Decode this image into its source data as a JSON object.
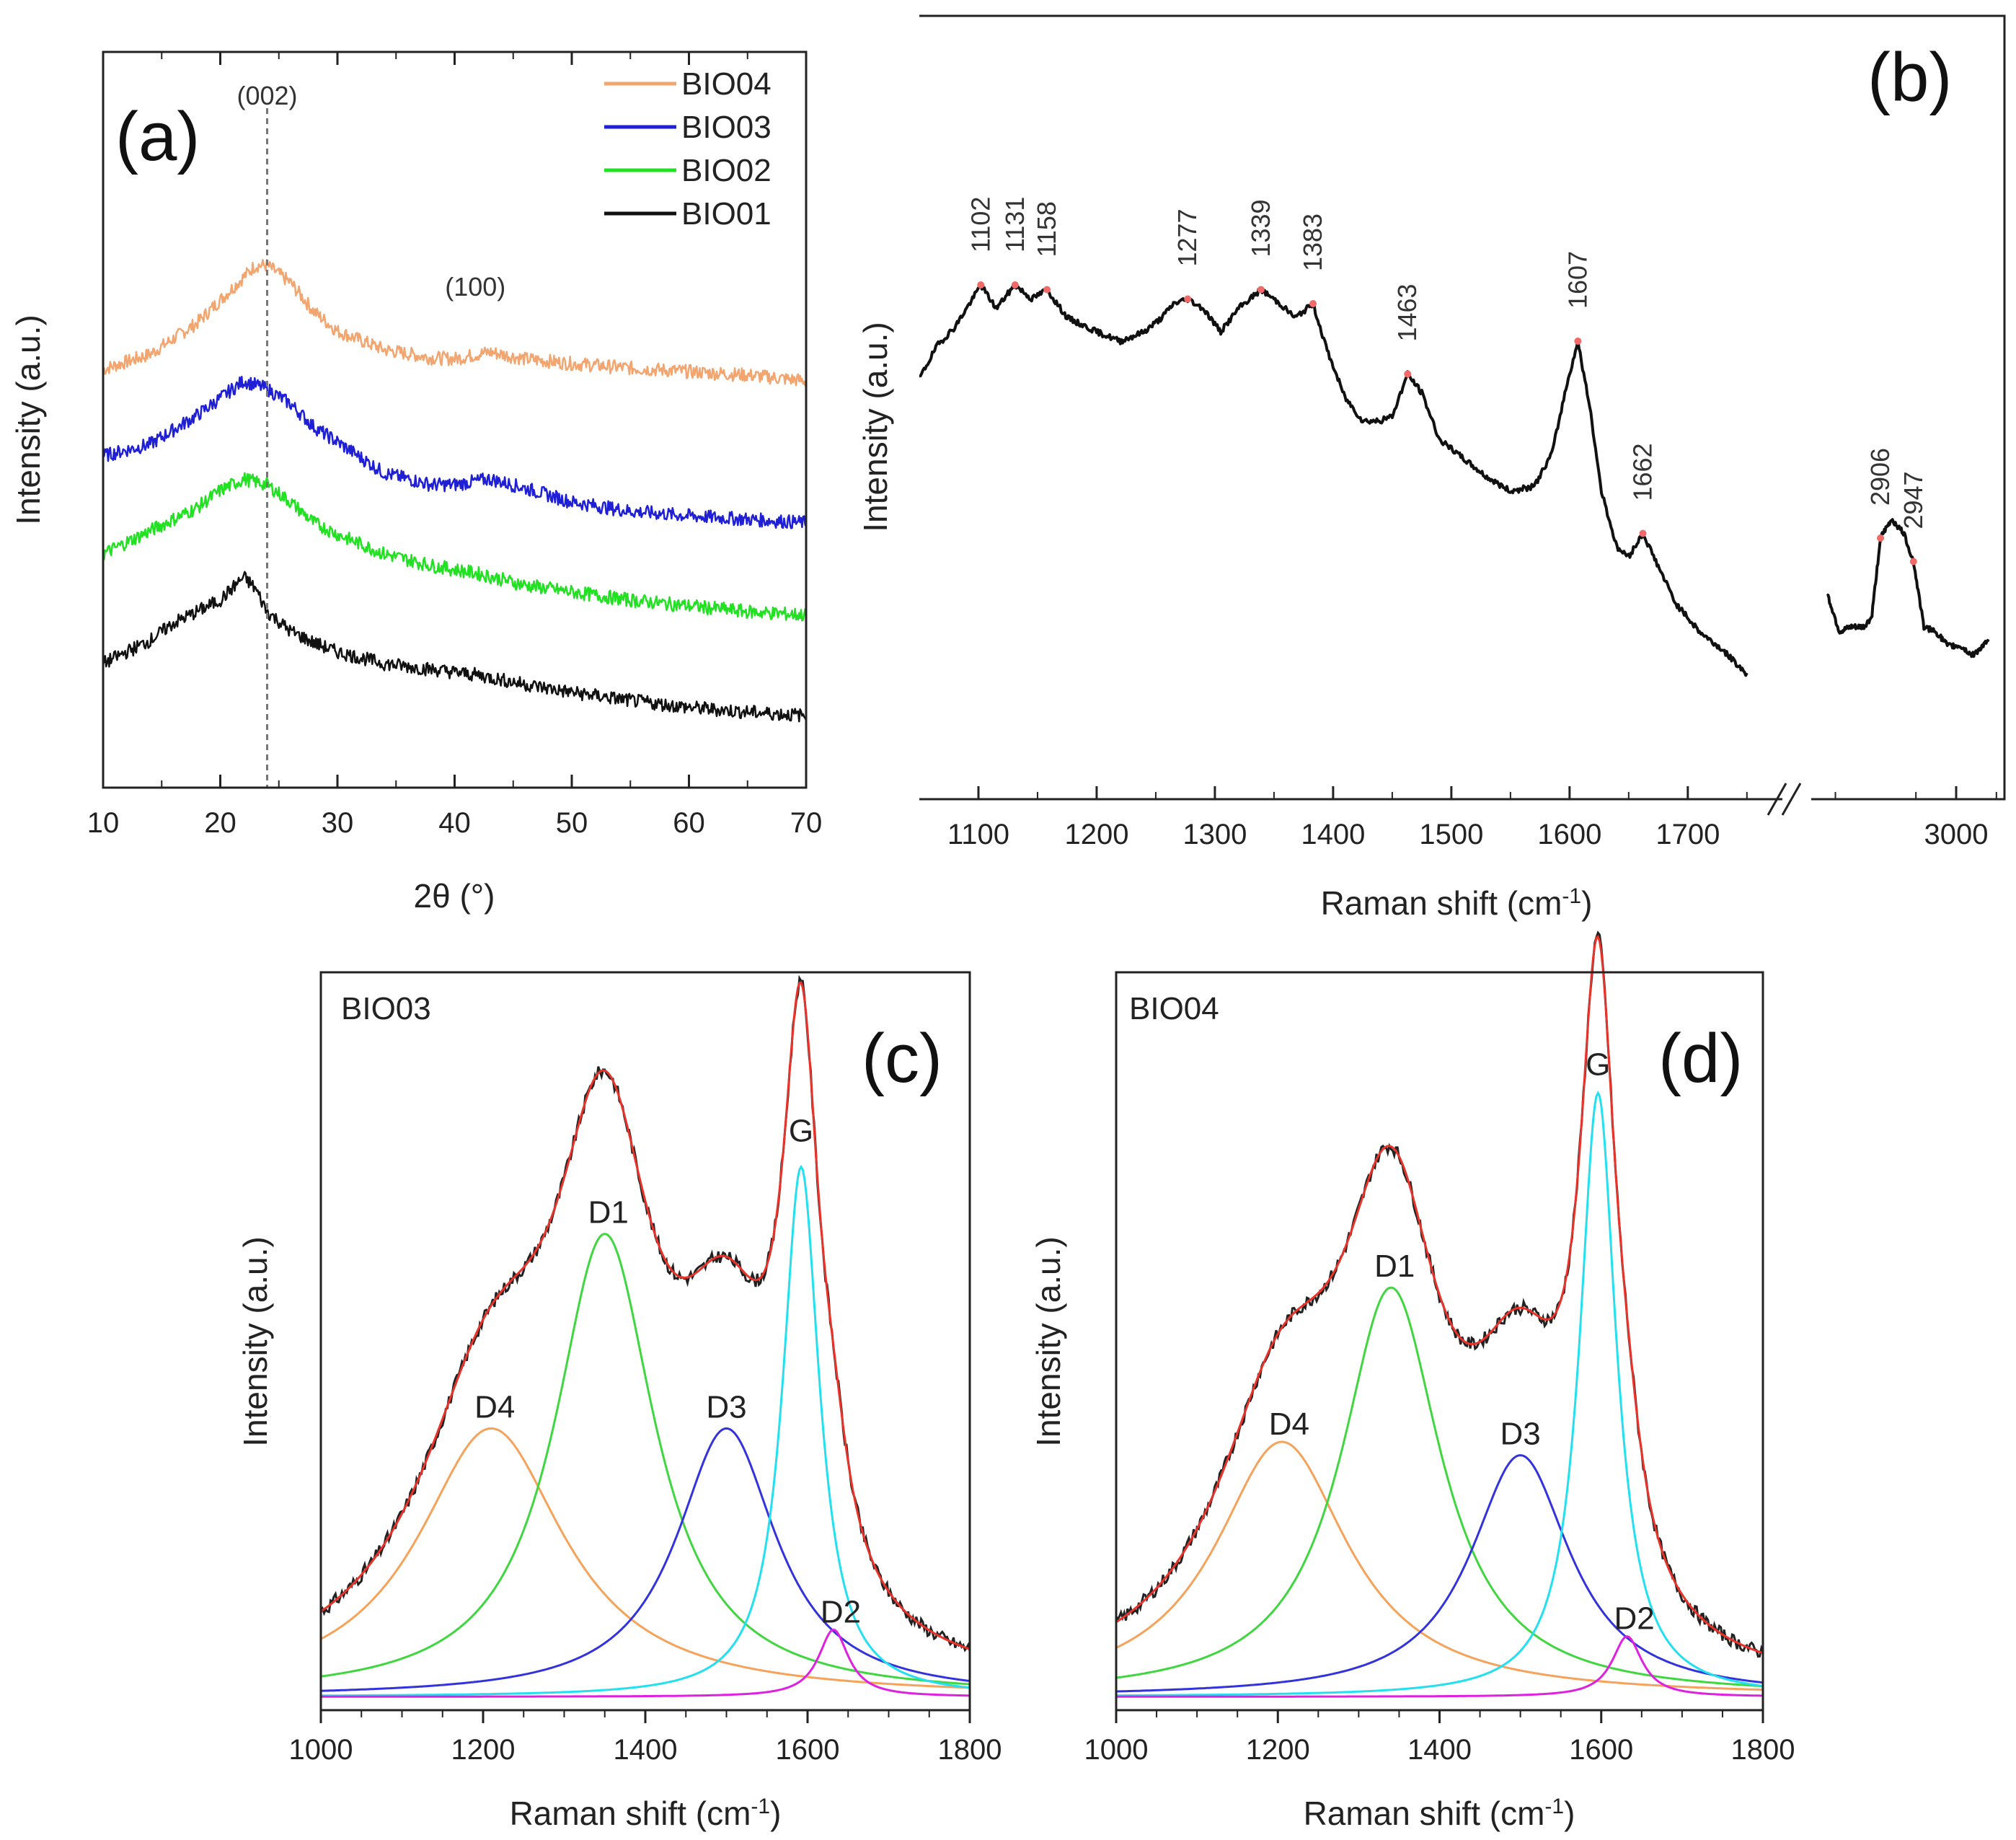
{
  "chart_data": [
    {
      "panel": "(a)",
      "type": "line",
      "xlabel": "2θ (°)",
      "ylabel": "Intensity (a.u.)",
      "xlim": [
        10,
        70
      ],
      "xticks": [
        10,
        20,
        30,
        40,
        50,
        60,
        70
      ],
      "y_ticks_shown": false,
      "reflections": [
        {
          "label": "(002)",
          "two_theta": 24,
          "dashed_line": true
        },
        {
          "label": "(100)",
          "two_theta": 43,
          "dashed_line": false
        }
      ],
      "legend_position": "top-right",
      "series": [
        {
          "name": "BIO04",
          "color": "#f2a56e",
          "offset": 3.0,
          "points": [
            [
              10,
              0.05
            ],
            [
              14,
              0.18
            ],
            [
              18,
              0.45
            ],
            [
              20,
              0.65
            ],
            [
              22,
              0.85
            ],
            [
              23,
              0.95
            ],
            [
              24,
              0.95
            ],
            [
              26,
              0.8
            ],
            [
              28,
              0.55
            ],
            [
              30,
              0.38
            ],
            [
              34,
              0.22
            ],
            [
              38,
              0.15
            ],
            [
              40,
              0.14
            ],
            [
              43,
              0.2
            ],
            [
              46,
              0.14
            ],
            [
              50,
              0.1
            ],
            [
              55,
              0.06
            ],
            [
              60,
              0.03
            ],
            [
              65,
              0.0
            ],
            [
              70,
              -0.05
            ]
          ]
        },
        {
          "name": "BIO03",
          "color": "#1f1fd6",
          "offset": 2.0,
          "points": [
            [
              10,
              0.3
            ],
            [
              14,
              0.4
            ],
            [
              18,
              0.65
            ],
            [
              20,
              0.8
            ],
            [
              22,
              0.95
            ],
            [
              24,
              0.88
            ],
            [
              26,
              0.75
            ],
            [
              28,
              0.55
            ],
            [
              30,
              0.42
            ],
            [
              34,
              0.15
            ],
            [
              38,
              0.05
            ],
            [
              40,
              0.05
            ],
            [
              43,
              0.1
            ],
            [
              46,
              0.02
            ],
            [
              50,
              -0.1
            ],
            [
              55,
              -0.18
            ],
            [
              60,
              -0.22
            ],
            [
              65,
              -0.25
            ],
            [
              70,
              -0.28
            ]
          ]
        },
        {
          "name": "BIO02",
          "color": "#22e022",
          "offset": 1.0,
          "points": [
            [
              10,
              0.45
            ],
            [
              14,
              0.65
            ],
            [
              18,
              0.85
            ],
            [
              20,
              1.0
            ],
            [
              22,
              1.1
            ],
            [
              24,
              1.05
            ],
            [
              26,
              0.9
            ],
            [
              28,
              0.72
            ],
            [
              30,
              0.62
            ],
            [
              34,
              0.45
            ],
            [
              38,
              0.35
            ],
            [
              42,
              0.28
            ],
            [
              46,
              0.18
            ],
            [
              50,
              0.12
            ],
            [
              55,
              0.05
            ],
            [
              60,
              0.0
            ],
            [
              65,
              -0.05
            ],
            [
              70,
              -0.08
            ]
          ]
        },
        {
          "name": "BIO01",
          "color": "#111111",
          "offset": 0.0,
          "points": [
            [
              10,
              0.5
            ],
            [
              14,
              0.7
            ],
            [
              16,
              0.85
            ],
            [
              18,
              0.95
            ],
            [
              20,
              1.05
            ],
            [
              22,
              1.25
            ],
            [
              23,
              1.15
            ],
            [
              24,
              0.95
            ],
            [
              26,
              0.78
            ],
            [
              28,
              0.68
            ],
            [
              30,
              0.6
            ],
            [
              34,
              0.5
            ],
            [
              38,
              0.45
            ],
            [
              42,
              0.4
            ],
            [
              46,
              0.32
            ],
            [
              50,
              0.25
            ],
            [
              55,
              0.18
            ],
            [
              60,
              0.12
            ],
            [
              65,
              0.08
            ],
            [
              70,
              0.05
            ]
          ]
        }
      ]
    },
    {
      "panel": "(b)",
      "type": "line",
      "xlabel": "Raman shift (cm-1)",
      "xlabel_main": "Raman shift (cm",
      "xlabel_sup": "-1",
      "xlabel_end": ")",
      "ylabel": "Intensity (a.u.)",
      "x_broken_axis": true,
      "xlim_left": [
        1050,
        1780
      ],
      "xlim_right": [
        2820,
        3060
      ],
      "xticks_left": [
        1100,
        1200,
        1300,
        1400,
        1500,
        1600,
        1700
      ],
      "xticks_right": [
        3000
      ],
      "y_ticks_shown": false,
      "peaks": [
        1102,
        1131,
        1158,
        1277,
        1339,
        1383,
        1463,
        1607,
        1662,
        2906,
        2947
      ],
      "series": [
        {
          "name": "spectrum-low",
          "color": "#111111",
          "points": [
            [
              1050,
              0.8
            ],
            [
              1065,
              0.87
            ],
            [
              1080,
              0.91
            ],
            [
              1095,
              0.97
            ],
            [
              1102,
              1.0
            ],
            [
              1115,
              0.95
            ],
            [
              1131,
              1.0
            ],
            [
              1145,
              0.97
            ],
            [
              1158,
              0.99
            ],
            [
              1175,
              0.93
            ],
            [
              1200,
              0.9
            ],
            [
              1220,
              0.88
            ],
            [
              1240,
              0.9
            ],
            [
              1255,
              0.93
            ],
            [
              1265,
              0.96
            ],
            [
              1277,
              0.97
            ],
            [
              1290,
              0.95
            ],
            [
              1305,
              0.9
            ],
            [
              1320,
              0.95
            ],
            [
              1339,
              0.99
            ],
            [
              1355,
              0.96
            ],
            [
              1368,
              0.93
            ],
            [
              1383,
              0.96
            ],
            [
              1395,
              0.86
            ],
            [
              1410,
              0.76
            ],
            [
              1425,
              0.71
            ],
            [
              1440,
              0.71
            ],
            [
              1450,
              0.72
            ],
            [
              1463,
              0.81
            ],
            [
              1475,
              0.77
            ],
            [
              1490,
              0.67
            ],
            [
              1510,
              0.63
            ],
            [
              1530,
              0.59
            ],
            [
              1550,
              0.56
            ],
            [
              1570,
              0.57
            ],
            [
              1585,
              0.64
            ],
            [
              1597,
              0.78
            ],
            [
              1607,
              0.88
            ],
            [
              1617,
              0.74
            ],
            [
              1627,
              0.56
            ],
            [
              1640,
              0.44
            ],
            [
              1650,
              0.42
            ],
            [
              1662,
              0.47
            ],
            [
              1675,
              0.4
            ],
            [
              1690,
              0.32
            ],
            [
              1710,
              0.26
            ],
            [
              1730,
              0.22
            ],
            [
              1750,
              0.17
            ]
          ]
        },
        {
          "name": "spectrum-high",
          "color": "#111111",
          "points": [
            [
              2840,
              0.34
            ],
            [
              2855,
              0.26
            ],
            [
              2870,
              0.27
            ],
            [
              2885,
              0.27
            ],
            [
              2895,
              0.29
            ],
            [
              2906,
              0.46
            ],
            [
              2920,
              0.5
            ],
            [
              2935,
              0.47
            ],
            [
              2947,
              0.41
            ],
            [
              2960,
              0.27
            ],
            [
              2975,
              0.26
            ],
            [
              2990,
              0.23
            ],
            [
              3005,
              0.23
            ],
            [
              3020,
              0.21
            ],
            [
              3040,
              0.24
            ]
          ]
        }
      ]
    },
    {
      "panel": "(c)",
      "sample": "BIO03",
      "type": "line",
      "xlabel": "Raman shift (cm-1)",
      "xlabel_main": "Raman shift (cm",
      "xlabel_sup": "-1",
      "xlabel_end": ")",
      "ylabel": "Intensity (a.u.)",
      "xlim": [
        1000,
        1800
      ],
      "xticks": [
        1000,
        1200,
        1400,
        1600,
        1800
      ],
      "ylim": [
        -0.02,
        1.08
      ],
      "y_ticks_shown": false,
      "fit_color": "#e8332a",
      "data_color": "#222222",
      "components": [
        {
          "name": "D4",
          "center": 1210,
          "height": 0.4,
          "fwhm": 220,
          "color": "#f5a25a"
        },
        {
          "name": "D1",
          "center": 1350,
          "height": 0.69,
          "fwhm": 150,
          "color": "#3fd63f"
        },
        {
          "name": "D3",
          "center": 1500,
          "height": 0.4,
          "fwhm": 150,
          "color": "#3333dd"
        },
        {
          "name": "G",
          "center": 1592,
          "height": 0.79,
          "fwhm": 55,
          "color": "#22e0f0"
        },
        {
          "name": "D2",
          "center": 1632,
          "height": 0.1,
          "fwhm": 45,
          "color": "#e020e0"
        }
      ]
    },
    {
      "panel": "(d)",
      "sample": "BIO04",
      "type": "line",
      "xlabel": "Raman shift (cm-1)",
      "xlabel_main": "Raman shift (cm",
      "xlabel_sup": "-1",
      "xlabel_end": ")",
      "ylabel": "Intensity (a.u.)",
      "xlim": [
        1000,
        1800
      ],
      "xticks": [
        1000,
        1200,
        1400,
        1600,
        1800
      ],
      "ylim": [
        -0.02,
        1.08
      ],
      "y_ticks_shown": false,
      "fit_color": "#e8332a",
      "data_color": "#222222",
      "components": [
        {
          "name": "D4",
          "center": 1205,
          "height": 0.38,
          "fwhm": 200,
          "color": "#f5a25a"
        },
        {
          "name": "D1",
          "center": 1340,
          "height": 0.61,
          "fwhm": 150,
          "color": "#3fd63f"
        },
        {
          "name": "D3",
          "center": 1500,
          "height": 0.36,
          "fwhm": 150,
          "color": "#3333dd"
        },
        {
          "name": "G",
          "center": 1596,
          "height": 0.9,
          "fwhm": 55,
          "color": "#22e0f0"
        },
        {
          "name": "D2",
          "center": 1632,
          "height": 0.09,
          "fwhm": 45,
          "color": "#e020e0"
        }
      ]
    }
  ]
}
